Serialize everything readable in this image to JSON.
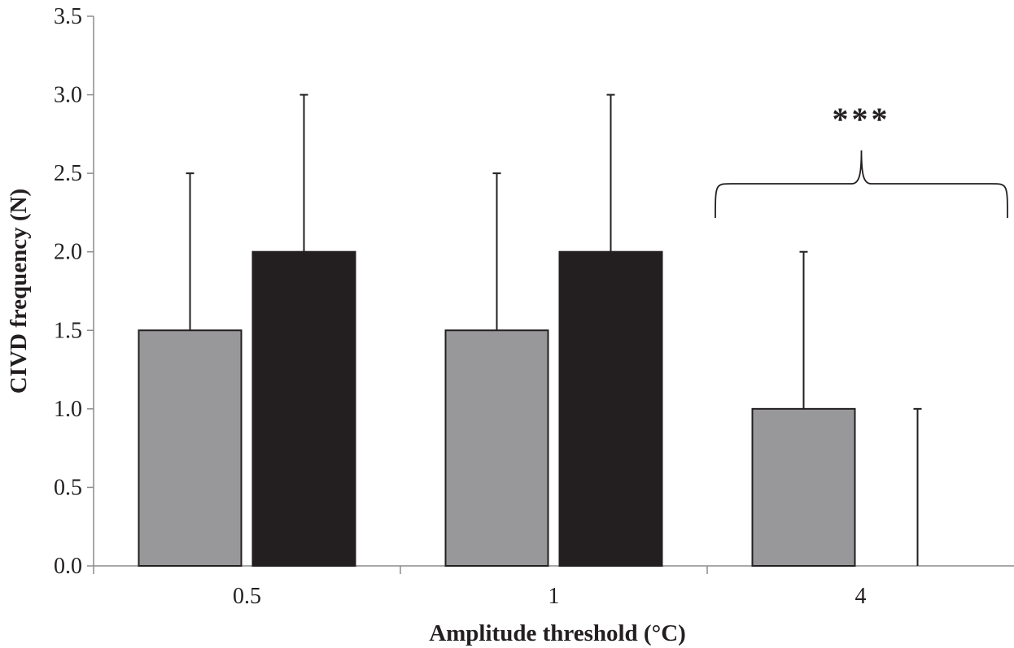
{
  "chart_data": {
    "type": "bar",
    "xlabel": "Amplitude threshold (°C)",
    "ylabel": "CIVD frequency (N)",
    "categories": [
      "0.5",
      "1",
      "4"
    ],
    "ylim": [
      0,
      3.5
    ],
    "yticks": [
      "0.0",
      "0.5",
      "1.0",
      "1.5",
      "2.0",
      "2.5",
      "3.0",
      "3.5"
    ],
    "grid": false,
    "legend": "none",
    "series": [
      {
        "values": [
          1.5,
          1.5,
          1.0
        ],
        "error_upper": [
          2.5,
          2.5,
          2.0
        ],
        "color": "#98989b"
      },
      {
        "values": [
          2.0,
          2.0,
          0.0
        ],
        "error_upper": [
          3.0,
          3.0,
          1.0
        ],
        "color": "#231f20"
      }
    ],
    "annotations": [
      {
        "text": "***",
        "category": "4",
        "bracket": true
      }
    ]
  }
}
